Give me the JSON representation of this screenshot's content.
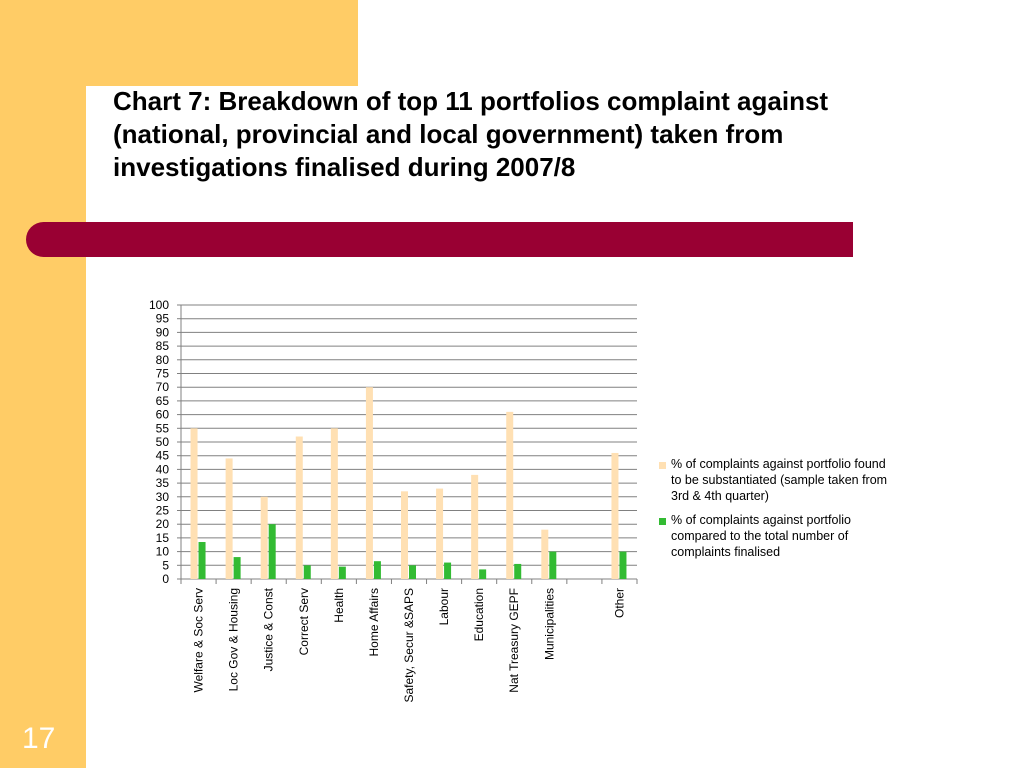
{
  "slide": {
    "title": "Chart 7: Breakdown of top 11 portfolios complaint against (national, provincial and local government) taken from investigations finalised during 2007/8",
    "slide_number": "17"
  },
  "colors": {
    "panel": "#ffcc66",
    "bar_band": "#990033",
    "series1": "#ffe0b3",
    "series2": "#33bb33"
  },
  "chart_data": {
    "type": "bar",
    "categories": [
      "Welfare & Soc Serv",
      "Loc Gov & Housing",
      "Justice & Const",
      "Correct Serv",
      "Health",
      "Home Affairs",
      "Safety, Secur &SAPS",
      "Labour",
      "Education",
      "Nat Treasury GEPF",
      "Municipalities",
      "",
      "Other"
    ],
    "series": [
      {
        "name": "% of complaints against portfolio found to be substantiated (sample taken from 3rd & 4th quarter)",
        "values": [
          55,
          44,
          30,
          52,
          55,
          70,
          32,
          33,
          38,
          61,
          18,
          null,
          46
        ]
      },
      {
        "name": "% of complaints against portfolio compared to the total number of complaints finalised",
        "values": [
          13.5,
          8,
          20,
          5,
          4.5,
          6.5,
          5,
          6,
          3.5,
          5.5,
          10,
          null,
          10
        ]
      }
    ],
    "yticks": [
      "0",
      "5",
      "10",
      "15",
      "20",
      "25",
      "30",
      "35",
      "40",
      "45",
      "50",
      "55",
      "60",
      "65",
      "70",
      "75",
      "80",
      "85",
      "90",
      "95",
      "100"
    ],
    "ylim": [
      0,
      100
    ],
    "grid": true,
    "legend_position": "right"
  }
}
